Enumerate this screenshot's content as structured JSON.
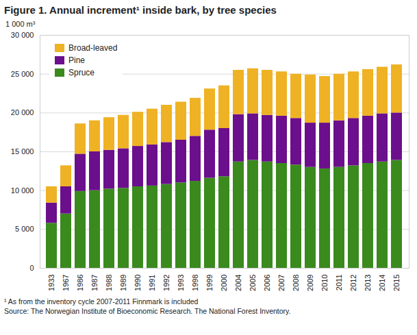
{
  "chart_data": {
    "type": "bar",
    "stacked": true,
    "title": "Figure 1. Annual increment¹ inside bark, by tree species",
    "ylabel": "1 000 m³",
    "footnote": "¹ As from the inventory cycle 2007-2011 Finnmark is included",
    "source": "Source: The Norwegian Institute of Bioeconomic Research. The National Forest Inventory.",
    "categories": [
      "1933",
      "1967",
      "1986",
      "1987",
      "1988",
      "1989",
      "1990",
      "1991",
      "1992",
      "1993",
      "1998",
      "1999",
      "2000",
      "2004",
      "2005",
      "2006",
      "2007",
      "2008",
      "2009",
      "2010",
      "2011",
      "2012",
      "2013",
      "2014",
      "2015"
    ],
    "series": [
      {
        "name": "Spruce",
        "color": "#3a8a1e",
        "values": [
          5800,
          7000,
          9900,
          10000,
          10200,
          10300,
          10500,
          10600,
          10800,
          11000,
          11200,
          11600,
          11800,
          13700,
          13900,
          13700,
          13500,
          13300,
          13000,
          12800,
          13000,
          13200,
          13500,
          13700,
          13900
        ]
      },
      {
        "name": "Pine",
        "color": "#6b0f8c",
        "values": [
          2600,
          3500,
          4800,
          5000,
          5000,
          5100,
          5200,
          5300,
          5400,
          5500,
          5800,
          6200,
          6200,
          6100,
          6000,
          6000,
          6100,
          6000,
          5700,
          5900,
          6000,
          6100,
          6100,
          6200,
          6100
        ]
      },
      {
        "name": "Broad-leaved",
        "color": "#efb224",
        "values": [
          2100,
          2700,
          3900,
          4000,
          4200,
          4300,
          4400,
          4600,
          4800,
          4900,
          4900,
          5300,
          5500,
          5700,
          5800,
          5800,
          5700,
          5700,
          6200,
          6000,
          6000,
          6000,
          6000,
          6000,
          6200
        ]
      }
    ],
    "ylim": [
      0,
      30000
    ],
    "yticks": [
      0,
      {
        "value": 5000,
        "label": "5 000"
      },
      {
        "value": 10000,
        "label": "10 000"
      },
      {
        "value": 15000,
        "label": "15 000"
      },
      {
        "value": 20000,
        "label": "20 000"
      },
      {
        "value": 25000,
        "label": "25 000"
      },
      {
        "value": 30000,
        "label": "30 000"
      }
    ],
    "grid": true,
    "legend": "top-left"
  }
}
